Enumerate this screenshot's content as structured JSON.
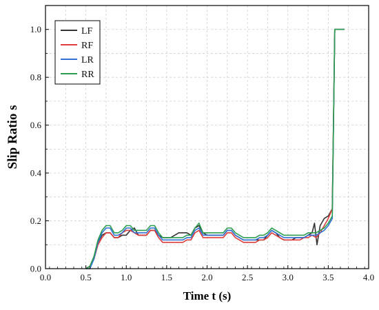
{
  "chart_data": {
    "type": "line",
    "title": "",
    "xlabel": "Time t (s)",
    "ylabel": "Slip Ratio s",
    "xlim": [
      0.0,
      4.0
    ],
    "ylim": [
      0.0,
      1.1
    ],
    "xticks": [
      "0.0",
      "0.5",
      "1.0",
      "1.5",
      "2.0",
      "2.5",
      "3.0",
      "3.5",
      "4.0"
    ],
    "yticks": [
      "0.0",
      "0.2",
      "0.4",
      "0.6",
      "0.8",
      "1.0"
    ],
    "grid": true,
    "legend_position": "top-left",
    "series": [
      {
        "name": "LF",
        "color": "#333333",
        "points": [
          [
            0.5,
            0.0
          ],
          [
            0.55,
            0.01
          ],
          [
            0.6,
            0.05
          ],
          [
            0.65,
            0.11
          ],
          [
            0.7,
            0.14
          ],
          [
            0.75,
            0.15
          ],
          [
            0.8,
            0.15
          ],
          [
            0.85,
            0.13
          ],
          [
            0.9,
            0.13
          ],
          [
            0.95,
            0.14
          ],
          [
            1.0,
            0.14
          ],
          [
            1.05,
            0.16
          ],
          [
            1.1,
            0.17
          ],
          [
            1.15,
            0.14
          ],
          [
            1.2,
            0.14
          ],
          [
            1.25,
            0.14
          ],
          [
            1.3,
            0.16
          ],
          [
            1.35,
            0.16
          ],
          [
            1.4,
            0.14
          ],
          [
            1.45,
            0.13
          ],
          [
            1.5,
            0.13
          ],
          [
            1.55,
            0.13
          ],
          [
            1.6,
            0.14
          ],
          [
            1.65,
            0.15
          ],
          [
            1.7,
            0.15
          ],
          [
            1.75,
            0.15
          ],
          [
            1.8,
            0.14
          ],
          [
            1.85,
            0.17
          ],
          [
            1.9,
            0.18
          ],
          [
            1.95,
            0.15
          ],
          [
            2.0,
            0.14
          ],
          [
            2.05,
            0.14
          ],
          [
            2.1,
            0.14
          ],
          [
            2.15,
            0.14
          ],
          [
            2.2,
            0.14
          ],
          [
            2.25,
            0.16
          ],
          [
            2.3,
            0.16
          ],
          [
            2.35,
            0.14
          ],
          [
            2.4,
            0.13
          ],
          [
            2.45,
            0.12
          ],
          [
            2.5,
            0.12
          ],
          [
            2.55,
            0.12
          ],
          [
            2.6,
            0.12
          ],
          [
            2.65,
            0.12
          ],
          [
            2.7,
            0.12
          ],
          [
            2.75,
            0.14
          ],
          [
            2.8,
            0.16
          ],
          [
            2.85,
            0.15
          ],
          [
            2.9,
            0.13
          ],
          [
            2.95,
            0.12
          ],
          [
            3.0,
            0.12
          ],
          [
            3.05,
            0.12
          ],
          [
            3.1,
            0.13
          ],
          [
            3.15,
            0.13
          ],
          [
            3.2,
            0.13
          ],
          [
            3.25,
            0.14
          ],
          [
            3.3,
            0.15
          ],
          [
            3.33,
            0.19
          ],
          [
            3.36,
            0.1
          ],
          [
            3.4,
            0.18
          ],
          [
            3.45,
            0.21
          ],
          [
            3.5,
            0.22
          ],
          [
            3.55,
            0.25
          ],
          [
            3.58,
            1.0
          ],
          [
            3.7,
            1.0
          ]
        ]
      },
      {
        "name": "RF",
        "color": "#e03a3a",
        "points": [
          [
            0.5,
            0.0
          ],
          [
            0.55,
            0.01
          ],
          [
            0.6,
            0.04
          ],
          [
            0.65,
            0.1
          ],
          [
            0.7,
            0.13
          ],
          [
            0.75,
            0.15
          ],
          [
            0.8,
            0.15
          ],
          [
            0.85,
            0.13
          ],
          [
            0.9,
            0.13
          ],
          [
            0.95,
            0.15
          ],
          [
            1.0,
            0.16
          ],
          [
            1.05,
            0.16
          ],
          [
            1.1,
            0.15
          ],
          [
            1.15,
            0.14
          ],
          [
            1.2,
            0.14
          ],
          [
            1.25,
            0.14
          ],
          [
            1.3,
            0.16
          ],
          [
            1.35,
            0.16
          ],
          [
            1.4,
            0.13
          ],
          [
            1.45,
            0.11
          ],
          [
            1.5,
            0.11
          ],
          [
            1.55,
            0.11
          ],
          [
            1.6,
            0.11
          ],
          [
            1.65,
            0.11
          ],
          [
            1.7,
            0.11
          ],
          [
            1.75,
            0.12
          ],
          [
            1.8,
            0.12
          ],
          [
            1.85,
            0.15
          ],
          [
            1.9,
            0.16
          ],
          [
            1.95,
            0.13
          ],
          [
            2.0,
            0.13
          ],
          [
            2.05,
            0.13
          ],
          [
            2.1,
            0.13
          ],
          [
            2.15,
            0.13
          ],
          [
            2.2,
            0.13
          ],
          [
            2.25,
            0.15
          ],
          [
            2.3,
            0.15
          ],
          [
            2.35,
            0.13
          ],
          [
            2.4,
            0.12
          ],
          [
            2.45,
            0.11
          ],
          [
            2.5,
            0.11
          ],
          [
            2.55,
            0.11
          ],
          [
            2.6,
            0.11
          ],
          [
            2.65,
            0.12
          ],
          [
            2.7,
            0.12
          ],
          [
            2.75,
            0.13
          ],
          [
            2.8,
            0.15
          ],
          [
            2.85,
            0.14
          ],
          [
            2.9,
            0.13
          ],
          [
            2.95,
            0.12
          ],
          [
            3.0,
            0.12
          ],
          [
            3.05,
            0.12
          ],
          [
            3.1,
            0.12
          ],
          [
            3.15,
            0.12
          ],
          [
            3.2,
            0.13
          ],
          [
            3.25,
            0.13
          ],
          [
            3.3,
            0.14
          ],
          [
            3.35,
            0.13
          ],
          [
            3.4,
            0.15
          ],
          [
            3.45,
            0.18
          ],
          [
            3.5,
            0.21
          ],
          [
            3.55,
            0.25
          ],
          [
            3.58,
            1.0
          ],
          [
            3.7,
            1.0
          ]
        ]
      },
      {
        "name": "LR",
        "color": "#2f6fd8",
        "points": [
          [
            0.5,
            0.0
          ],
          [
            0.55,
            0.0
          ],
          [
            0.6,
            0.04
          ],
          [
            0.65,
            0.11
          ],
          [
            0.7,
            0.15
          ],
          [
            0.75,
            0.17
          ],
          [
            0.8,
            0.17
          ],
          [
            0.85,
            0.14
          ],
          [
            0.9,
            0.14
          ],
          [
            0.95,
            0.15
          ],
          [
            1.0,
            0.17
          ],
          [
            1.05,
            0.17
          ],
          [
            1.1,
            0.15
          ],
          [
            1.15,
            0.15
          ],
          [
            1.2,
            0.15
          ],
          [
            1.25,
            0.15
          ],
          [
            1.3,
            0.17
          ],
          [
            1.35,
            0.17
          ],
          [
            1.4,
            0.14
          ],
          [
            1.45,
            0.12
          ],
          [
            1.5,
            0.12
          ],
          [
            1.55,
            0.12
          ],
          [
            1.6,
            0.12
          ],
          [
            1.65,
            0.12
          ],
          [
            1.7,
            0.12
          ],
          [
            1.75,
            0.13
          ],
          [
            1.8,
            0.13
          ],
          [
            1.85,
            0.16
          ],
          [
            1.9,
            0.17
          ],
          [
            1.95,
            0.14
          ],
          [
            2.0,
            0.14
          ],
          [
            2.05,
            0.14
          ],
          [
            2.1,
            0.14
          ],
          [
            2.15,
            0.14
          ],
          [
            2.2,
            0.14
          ],
          [
            2.25,
            0.16
          ],
          [
            2.3,
            0.16
          ],
          [
            2.35,
            0.14
          ],
          [
            2.4,
            0.13
          ],
          [
            2.45,
            0.12
          ],
          [
            2.5,
            0.12
          ],
          [
            2.55,
            0.12
          ],
          [
            2.6,
            0.12
          ],
          [
            2.65,
            0.13
          ],
          [
            2.7,
            0.13
          ],
          [
            2.75,
            0.14
          ],
          [
            2.8,
            0.16
          ],
          [
            2.85,
            0.15
          ],
          [
            2.9,
            0.14
          ],
          [
            2.95,
            0.13
          ],
          [
            3.0,
            0.13
          ],
          [
            3.05,
            0.13
          ],
          [
            3.1,
            0.13
          ],
          [
            3.15,
            0.13
          ],
          [
            3.2,
            0.13
          ],
          [
            3.25,
            0.14
          ],
          [
            3.3,
            0.14
          ],
          [
            3.35,
            0.14
          ],
          [
            3.4,
            0.15
          ],
          [
            3.45,
            0.16
          ],
          [
            3.5,
            0.18
          ],
          [
            3.55,
            0.21
          ],
          [
            3.58,
            1.0
          ],
          [
            3.7,
            1.0
          ]
        ]
      },
      {
        "name": "RR",
        "color": "#2a9d4e",
        "points": [
          [
            0.5,
            0.0
          ],
          [
            0.55,
            0.01
          ],
          [
            0.6,
            0.05
          ],
          [
            0.65,
            0.12
          ],
          [
            0.7,
            0.16
          ],
          [
            0.75,
            0.18
          ],
          [
            0.8,
            0.18
          ],
          [
            0.85,
            0.15
          ],
          [
            0.9,
            0.15
          ],
          [
            0.95,
            0.16
          ],
          [
            1.0,
            0.18
          ],
          [
            1.05,
            0.18
          ],
          [
            1.1,
            0.16
          ],
          [
            1.15,
            0.16
          ],
          [
            1.2,
            0.16
          ],
          [
            1.25,
            0.16
          ],
          [
            1.3,
            0.18
          ],
          [
            1.35,
            0.18
          ],
          [
            1.4,
            0.15
          ],
          [
            1.45,
            0.13
          ],
          [
            1.5,
            0.13
          ],
          [
            1.55,
            0.13
          ],
          [
            1.6,
            0.13
          ],
          [
            1.65,
            0.13
          ],
          [
            1.7,
            0.13
          ],
          [
            1.75,
            0.14
          ],
          [
            1.8,
            0.14
          ],
          [
            1.85,
            0.17
          ],
          [
            1.9,
            0.19
          ],
          [
            1.95,
            0.15
          ],
          [
            2.0,
            0.15
          ],
          [
            2.05,
            0.15
          ],
          [
            2.1,
            0.15
          ],
          [
            2.15,
            0.15
          ],
          [
            2.2,
            0.15
          ],
          [
            2.25,
            0.17
          ],
          [
            2.3,
            0.17
          ],
          [
            2.35,
            0.15
          ],
          [
            2.4,
            0.14
          ],
          [
            2.45,
            0.13
          ],
          [
            2.5,
            0.13
          ],
          [
            2.55,
            0.13
          ],
          [
            2.6,
            0.13
          ],
          [
            2.65,
            0.14
          ],
          [
            2.7,
            0.14
          ],
          [
            2.75,
            0.15
          ],
          [
            2.8,
            0.17
          ],
          [
            2.85,
            0.16
          ],
          [
            2.9,
            0.15
          ],
          [
            2.95,
            0.14
          ],
          [
            3.0,
            0.14
          ],
          [
            3.05,
            0.14
          ],
          [
            3.1,
            0.14
          ],
          [
            3.15,
            0.14
          ],
          [
            3.2,
            0.14
          ],
          [
            3.25,
            0.15
          ],
          [
            3.3,
            0.15
          ],
          [
            3.35,
            0.15
          ],
          [
            3.4,
            0.16
          ],
          [
            3.45,
            0.17
          ],
          [
            3.5,
            0.19
          ],
          [
            3.55,
            0.22
          ],
          [
            3.58,
            1.0
          ],
          [
            3.7,
            1.0
          ]
        ]
      }
    ]
  }
}
